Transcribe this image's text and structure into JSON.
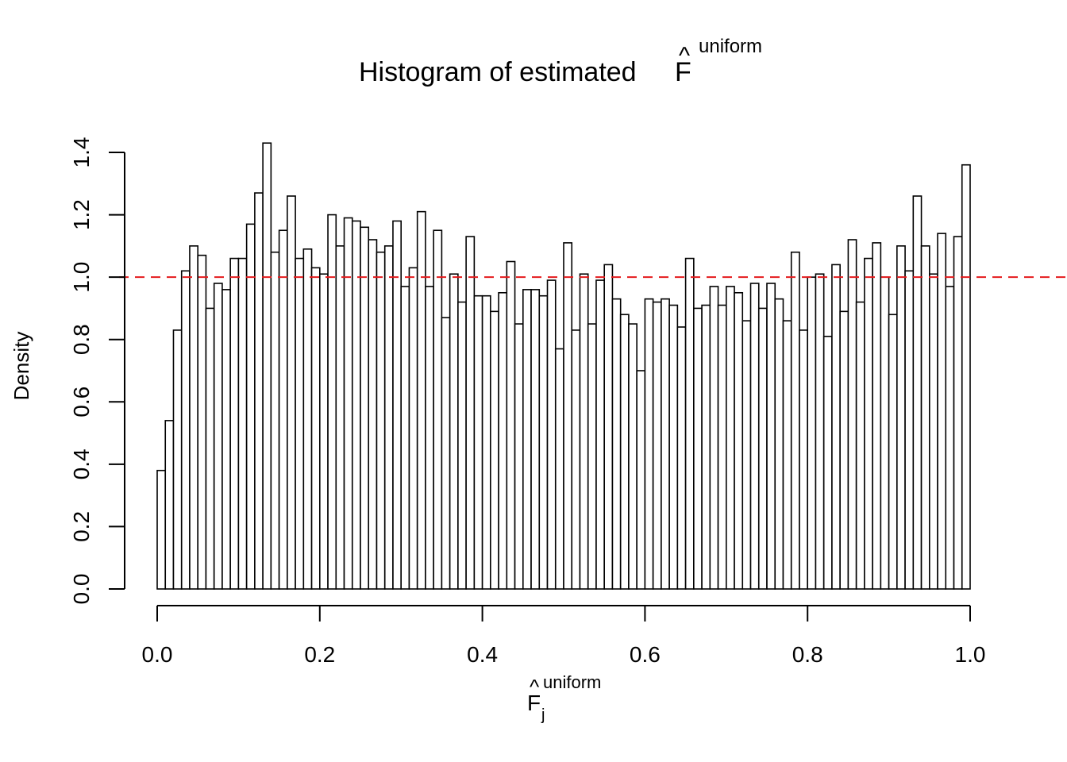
{
  "chart_data": {
    "type": "histogram",
    "title": "Histogram of estimated",
    "title_symbol": "F",
    "title_superscript": "uniform",
    "title_hat": "^",
    "xlabel_symbol": "F",
    "xlabel_subscript": "j",
    "xlabel_superscript": "uniform",
    "xlabel_hat": "^",
    "ylabel": "Density",
    "xlim": [
      0,
      1
    ],
    "ylim": [
      0,
      1.4
    ],
    "bin_width": 0.01,
    "x_ticks": [
      "0.0",
      "0.2",
      "0.4",
      "0.6",
      "0.8",
      "1.0"
    ],
    "y_ticks": [
      "0.0",
      "0.2",
      "0.4",
      "0.6",
      "0.8",
      "1.0",
      "1.2",
      "1.4"
    ],
    "reference_line": {
      "y": 1.0,
      "color": "#e41a1c",
      "style": "dashed"
    },
    "bar_fill": "#ffffff",
    "bar_stroke": "#000000",
    "values": [
      0.38,
      0.54,
      0.83,
      1.02,
      1.1,
      1.07,
      0.9,
      0.98,
      0.96,
      1.06,
      1.06,
      1.17,
      1.27,
      1.43,
      1.08,
      1.15,
      1.26,
      1.06,
      1.09,
      1.03,
      1.01,
      1.2,
      1.1,
      1.19,
      1.18,
      1.16,
      1.12,
      1.08,
      1.1,
      1.18,
      0.97,
      1.03,
      1.21,
      0.97,
      1.15,
      0.87,
      1.01,
      0.92,
      1.13,
      0.94,
      0.94,
      0.89,
      0.95,
      1.05,
      0.85,
      0.96,
      0.96,
      0.94,
      0.99,
      0.77,
      1.11,
      0.83,
      1.01,
      0.85,
      0.99,
      1.04,
      0.93,
      0.88,
      0.85,
      0.7,
      0.93,
      0.92,
      0.93,
      0.91,
      0.84,
      1.06,
      0.9,
      0.91,
      0.97,
      0.91,
      0.97,
      0.95,
      0.86,
      0.98,
      0.9,
      0.98,
      0.93,
      0.86,
      1.08,
      0.83,
      1.0,
      1.01,
      0.81,
      1.04,
      0.89,
      1.12,
      0.92,
      1.06,
      1.11,
      1.0,
      0.88,
      1.1,
      1.02,
      1.26,
      1.1,
      1.01,
      1.14,
      0.97,
      1.13,
      1.36
    ]
  }
}
